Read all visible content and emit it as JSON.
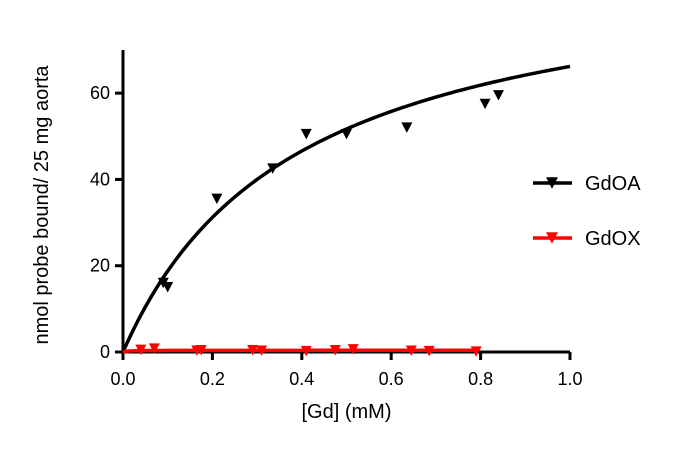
{
  "chart_data": {
    "type": "scatter",
    "title": "",
    "xlabel": "[Gd] (mM)",
    "ylabel": "nmol probe bound/ 25 mg aorta",
    "xlim": [
      0,
      1.0
    ],
    "ylim": [
      0,
      70
    ],
    "xticks": [
      "0.0",
      "0.2",
      "0.4",
      "0.6",
      "0.8",
      "1.0"
    ],
    "yticks": [
      "0",
      "20",
      "40",
      "60"
    ],
    "grid": false,
    "legend_position": "right",
    "series": [
      {
        "name": "GdOA",
        "color": "#000000",
        "marker": "triangle-down",
        "x": [
          0.09,
          0.1,
          0.21,
          0.335,
          0.41,
          0.5,
          0.635,
          0.81,
          0.84
        ],
        "y": [
          16,
          15,
          35.5,
          42.5,
          50.5,
          50.5,
          52,
          57.5,
          59.5
        ],
        "fit_curve": {
          "model": "one-site saturation",
          "bmax": 92,
          "kd": 0.39
        }
      },
      {
        "name": "GdOX",
        "color": "#ff0000",
        "marker": "triangle-down",
        "x": [
          0.04,
          0.07,
          0.165,
          0.175,
          0.29,
          0.31,
          0.41,
          0.475,
          0.515,
          0.645,
          0.685,
          0.79
        ],
        "y": [
          0.5,
          0.8,
          0.3,
          0.4,
          0.4,
          0.3,
          0.2,
          0.4,
          0.6,
          0.3,
          0.2,
          0.1
        ],
        "fit_curve": {
          "model": "one-site saturation",
          "bmax": 0.4,
          "kd": 0.01
        }
      }
    ]
  }
}
